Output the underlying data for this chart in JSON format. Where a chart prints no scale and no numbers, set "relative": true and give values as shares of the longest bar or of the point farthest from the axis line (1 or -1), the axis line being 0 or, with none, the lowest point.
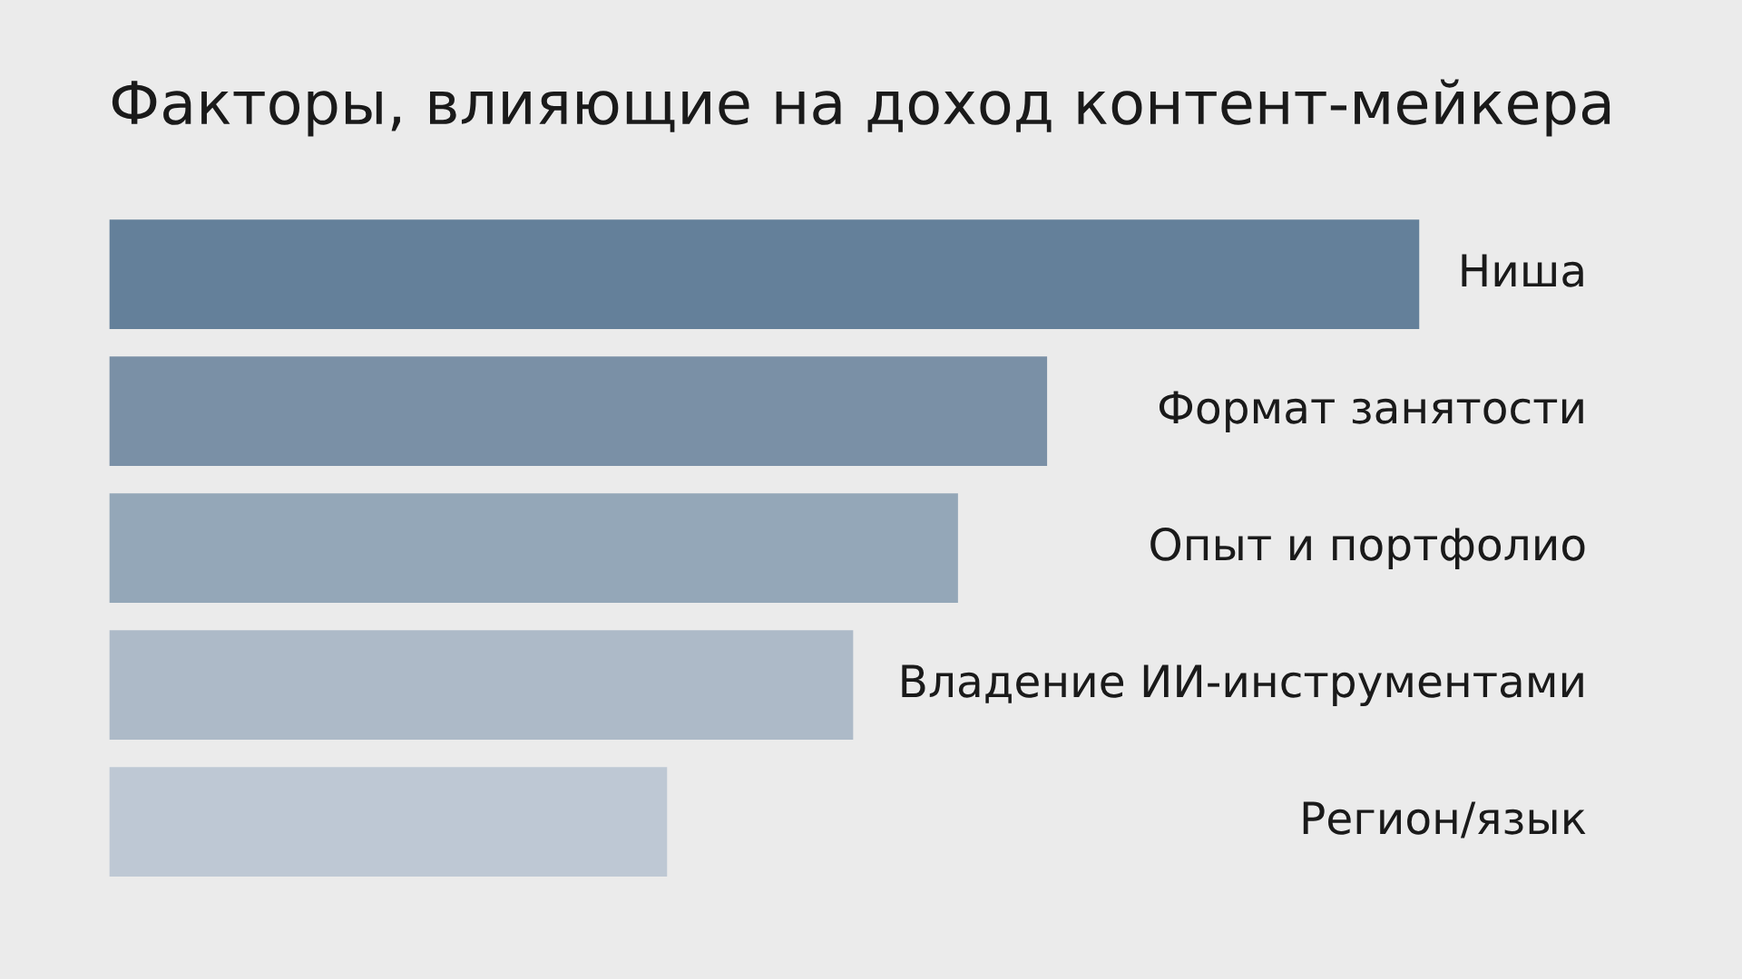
{
  "chart_data": {
    "type": "bar",
    "orientation": "horizontal",
    "relative": true,
    "title": "Факторы, влияющие на доход контент-мейкера",
    "categories": [
      "Ниша",
      "Формат занятости",
      "Опыт и портфолио",
      "Владение ИИ-инструментами",
      "Регион/язык"
    ],
    "values": [
      1,
      0.716,
      0.648,
      0.568,
      0.426
    ],
    "colors": [
      "#64809a",
      "#7a90a6",
      "#94a7b8",
      "#adbac8",
      "#bec8d4"
    ],
    "legend": false
  }
}
